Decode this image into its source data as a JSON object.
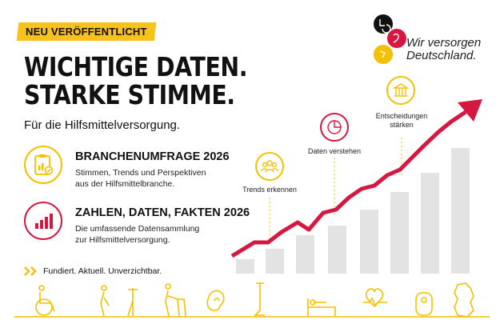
{
  "badge": "NEU VERÖFFENTLICHT",
  "headline": {
    "line1": "WICHTIGE DATEN.",
    "line2": "STARKE STIMME."
  },
  "subline": "Für die Hilfsmittelversorgung.",
  "items": [
    {
      "title": "BRANCHENUMFRAGE 2026",
      "desc1": "Stimmen, Trends und Perspektiven",
      "desc2": "aus der Hilfsmittelbranche.",
      "icon": "clipboard-chart-icon"
    },
    {
      "title": "ZAHLEN, DATEN, FAKTEN 2026",
      "desc1": "Die umfassende Datensammlung",
      "desc2": "zur Hilfsmittelversorgung.",
      "icon": "bar-chart-icon"
    }
  ],
  "footer": "Fundiert. Aktuell. Unverzichtbar.",
  "brand": {
    "line1": "Wir versorgen",
    "line2": "Deutschland."
  },
  "chart_labels": {
    "trends": "Trends erkennen",
    "daten": "Daten verstehen",
    "entscheidungen_1": "Entscheidungen",
    "entscheidungen_2": "stärken"
  },
  "colors": {
    "yellow": "#f3c100",
    "red": "#d6173f",
    "bar": "#e3e3e3"
  },
  "bottom_icons": [
    "wheelchair-icon",
    "walker-person-icon",
    "crutch-icon",
    "rollator-person-icon",
    "ear-icon",
    "prosthesis-icon",
    "care-bed-icon",
    "heartbeat-icon",
    "ostomy-icon",
    "germany-map-icon"
  ]
}
